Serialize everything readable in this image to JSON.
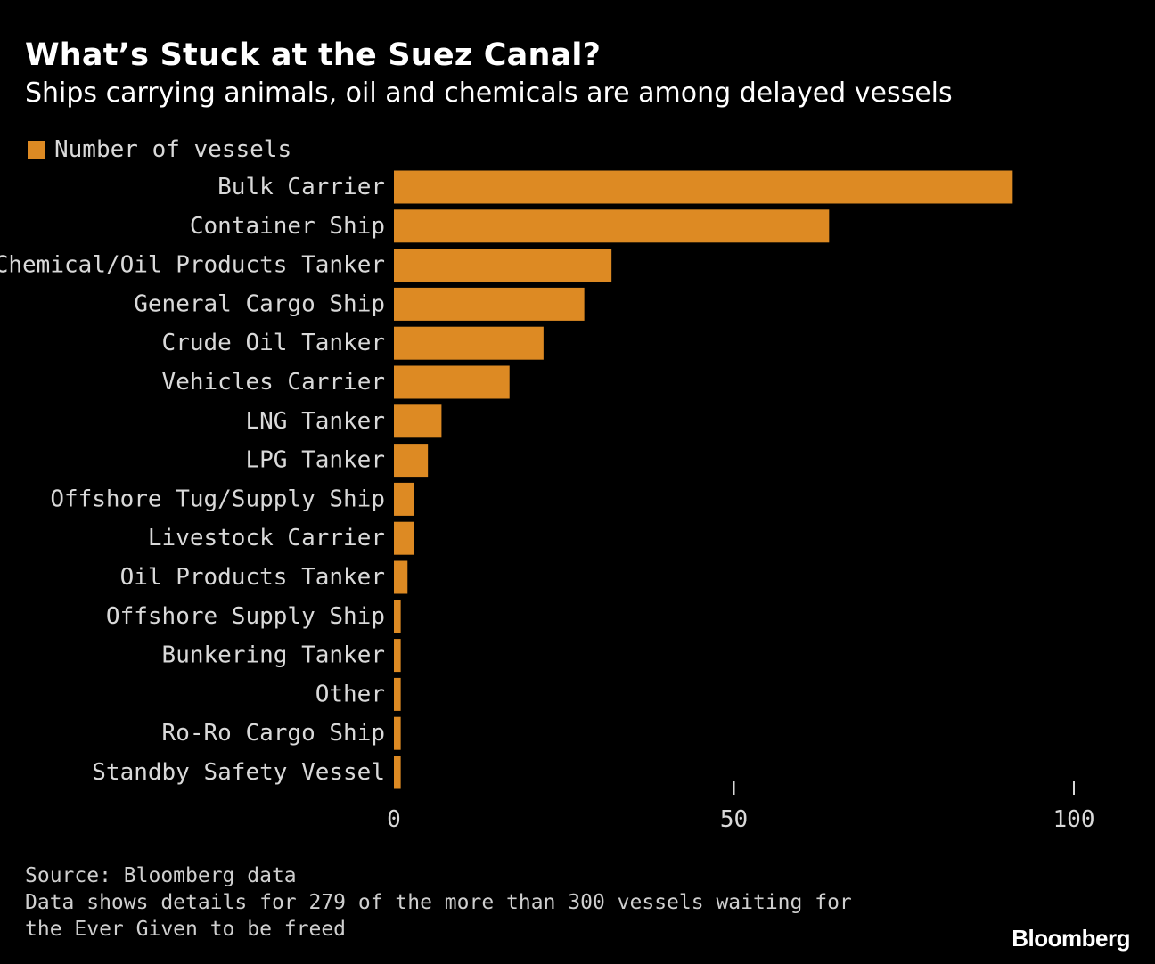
{
  "title": "What’s Stuck at the Suez Canal?",
  "subtitle": "Ships carrying animals, oil and chemicals are among delayed vessels",
  "source": "Source: Bloomberg data",
  "note": "Data shows details for 279 of the more than 300 vessels waiting for the Ever Given to be freed",
  "brand": "Bloomberg",
  "colors": {
    "bar": "#dd8a23",
    "background": "#000000",
    "text": "#d9d9d9"
  },
  "chart_data": {
    "type": "bar",
    "orientation": "horizontal",
    "title": "What’s Stuck at the Suez Canal?",
    "subtitle": "Ships carrying animals, oil and chemicals are among delayed vessels",
    "categories": [
      "Bulk Carrier",
      "Container Ship",
      "Chemical/Oil Products Tanker",
      "General Cargo Ship",
      "Crude Oil Tanker",
      "Vehicles Carrier",
      "LNG Tanker",
      "LPG Tanker",
      "Offshore Tug/Supply Ship",
      "Livestock Carrier",
      "Oil Products Tanker",
      "Offshore Supply Ship",
      "Bunkering Tanker",
      "Other",
      "Ro-Ro Cargo Ship",
      "Standby Safety Vessel"
    ],
    "series": [
      {
        "name": "Number of vessels",
        "values": [
          91,
          64,
          32,
          28,
          22,
          17,
          7,
          5,
          3,
          3,
          2,
          1,
          1,
          1,
          1,
          1
        ]
      }
    ],
    "xlim": [
      0,
      100
    ],
    "xticks": [
      0,
      50,
      100
    ],
    "xlabel": "",
    "ylabel": "",
    "legend": "top-left",
    "grid": false
  }
}
